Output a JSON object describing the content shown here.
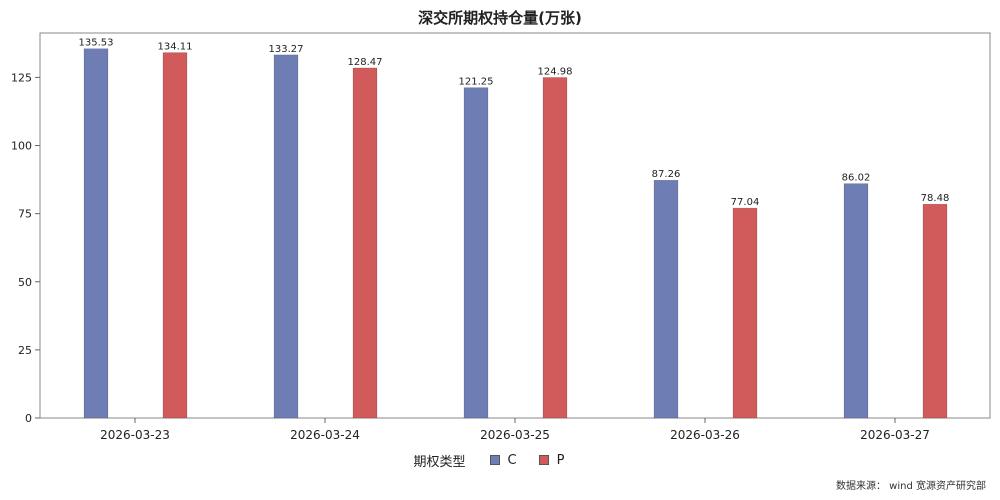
{
  "chart_data": {
    "type": "bar",
    "title": "深交所期权持仓量(万张)",
    "xlabel": "",
    "ylabel": "",
    "categories": [
      "2026-03-23",
      "2026-03-24",
      "2026-03-25",
      "2026-03-26",
      "2026-03-27"
    ],
    "series": [
      {
        "name": "C",
        "color": "#6f7db5",
        "values": [
          135.53,
          133.27,
          121.25,
          87.26,
          86.02
        ]
      },
      {
        "name": "P",
        "color": "#d15b5a",
        "values": [
          134.11,
          128.47,
          124.98,
          77.04,
          78.48
        ]
      }
    ],
    "ylim": [
      0,
      141.3
    ],
    "yticks": [
      0,
      25,
      50,
      75,
      100,
      125
    ],
    "grid": false,
    "legend_title": "期权类型",
    "legend_position": "bottom-center"
  },
  "footer": {
    "source_note": "数据来源：  wind  宽源资产研究部"
  }
}
